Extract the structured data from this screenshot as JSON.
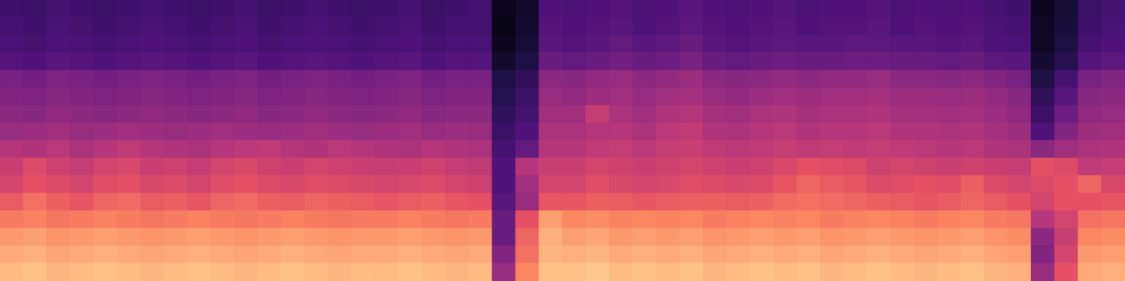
{
  "chart_data": {
    "type": "heatmap",
    "tick_labels": false,
    "xlim": [
      0,
      48
    ],
    "ylim": [
      0,
      16
    ],
    "zlim": [
      -80,
      0
    ],
    "cells": [
      [
        -63,
        -64,
        -62,
        -63,
        -64,
        -63,
        -62,
        -63,
        -64,
        -63,
        -62,
        -64,
        -63,
        -62,
        -63,
        -64,
        -63,
        -62,
        -64,
        -63,
        -62,
        -76,
        -74,
        -60,
        -61,
        -60,
        -59,
        -61,
        -60,
        -58,
        -60,
        -61,
        -60,
        -59,
        -61,
        -60,
        -60,
        -59,
        -61,
        -60,
        -61,
        -60,
        -62,
        -63,
        -76,
        -72,
        -64,
        -62
      ],
      [
        -62,
        -63,
        -61,
        -62,
        -63,
        -62,
        -61,
        -62,
        -63,
        -62,
        -61,
        -63,
        -62,
        -61,
        -62,
        -63,
        -62,
        -61,
        -63,
        -62,
        -62,
        -77,
        -73,
        -59,
        -60,
        -59,
        -58,
        -60,
        -59,
        -57,
        -59,
        -60,
        -59,
        -58,
        -60,
        -59,
        -59,
        -58,
        -60,
        -59,
        -60,
        -59,
        -61,
        -62,
        -75,
        -71,
        -63,
        -61
      ],
      [
        -61,
        -62,
        -60,
        -61,
        -62,
        -61,
        -60,
        -61,
        -62,
        -61,
        -60,
        -62,
        -61,
        -60,
        -61,
        -62,
        -61,
        -60,
        -62,
        -61,
        -61,
        -76,
        -72,
        -58,
        -59,
        -58,
        -56,
        -58,
        -57,
        -55,
        -58,
        -59,
        -58,
        -57,
        -58,
        -58,
        -57,
        -57,
        -58,
        -58,
        -59,
        -58,
        -60,
        -61,
        -75,
        -70,
        -62,
        -60
      ],
      [
        -59,
        -60,
        -58,
        -59,
        -60,
        -59,
        -58,
        -59,
        -60,
        -59,
        -58,
        -60,
        -59,
        -58,
        -59,
        -60,
        -59,
        -58,
        -60,
        -59,
        -59,
        -74,
        -70,
        -55,
        -56,
        -55,
        -53,
        -55,
        -54,
        -52,
        -55,
        -56,
        -55,
        -54,
        -55,
        -55,
        -54,
        -54,
        -55,
        -55,
        -56,
        -55,
        -57,
        -58,
        -73,
        -68,
        -59,
        -57
      ],
      [
        -52,
        -53,
        -51,
        -52,
        -53,
        -52,
        -51,
        -52,
        -53,
        -52,
        -51,
        -53,
        -52,
        -51,
        -52,
        -53,
        -52,
        -51,
        -53,
        -52,
        -52,
        -70,
        -66,
        -48,
        -49,
        -47,
        -46,
        -48,
        -47,
        -45,
        -48,
        -49,
        -48,
        -47,
        -48,
        -47,
        -47,
        -46,
        -48,
        -48,
        -49,
        -48,
        -50,
        -52,
        -70,
        -62,
        -52,
        -50
      ],
      [
        -50,
        -51,
        -49,
        -50,
        -51,
        -50,
        -49,
        -50,
        -51,
        -50,
        -49,
        -51,
        -50,
        -49,
        -50,
        -51,
        -50,
        -49,
        -51,
        -50,
        -50,
        -68,
        -64,
        -46,
        -47,
        -45,
        -44,
        -46,
        -44,
        -43,
        -46,
        -47,
        -45,
        -44,
        -45,
        -44,
        -44,
        -43,
        -45,
        -45,
        -46,
        -45,
        -47,
        -49,
        -66,
        -58,
        -49,
        -48
      ],
      [
        -48,
        -49,
        -47,
        -48,
        -49,
        -48,
        -47,
        -48,
        -49,
        -48,
        -47,
        -49,
        -48,
        -47,
        -48,
        -49,
        -48,
        -47,
        -49,
        -48,
        -48,
        -66,
        -62,
        -44,
        -44,
        -37,
        -42,
        -44,
        -41,
        -40,
        -43,
        -44,
        -42,
        -41,
        -43,
        -42,
        -42,
        -41,
        -43,
        -43,
        -44,
        -43,
        -45,
        -47,
        -64,
        -54,
        -47,
        -46
      ],
      [
        -46,
        -45,
        -44,
        -46,
        -45,
        -44,
        -45,
        -46,
        -45,
        -44,
        -45,
        -46,
        -45,
        -44,
        -45,
        -46,
        -45,
        -44,
        -46,
        -45,
        -46,
        -64,
        -60,
        -42,
        -42,
        -40,
        -40,
        -42,
        -39,
        -38,
        -41,
        -42,
        -40,
        -39,
        -41,
        -40,
        -40,
        -39,
        -41,
        -41,
        -42,
        -41,
        -43,
        -45,
        -60,
        -50,
        -45,
        -44
      ],
      [
        -40,
        -41,
        -39,
        -42,
        -40,
        -38,
        -40,
        -41,
        -42,
        -40,
        -39,
        -38,
        -40,
        -41,
        -39,
        -40,
        -41,
        -42,
        -40,
        -41,
        -42,
        -62,
        -56,
        -40,
        -40,
        -38,
        -37,
        -39,
        -37,
        -36,
        -38,
        -39,
        -38,
        -37,
        -38,
        -37,
        -38,
        -37,
        -38,
        -39,
        -40,
        -39,
        -41,
        -42,
        -48,
        -44,
        -42,
        -41
      ],
      [
        -36,
        -32,
        -35,
        -37,
        -34,
        -33,
        -36,
        -35,
        -37,
        -34,
        -33,
        -35,
        -36,
        -34,
        -35,
        -36,
        -37,
        -36,
        -35,
        -37,
        -38,
        -60,
        -40,
        -36,
        -36,
        -34,
        -35,
        -36,
        -35,
        -34,
        -35,
        -36,
        -35,
        -33,
        -30,
        -31,
        -32,
        -35,
        -34,
        -35,
        -36,
        -35,
        -36,
        -37,
        -30,
        -32,
        -38,
        -37
      ],
      [
        -34,
        -30,
        -32,
        -34,
        -31,
        -30,
        -33,
        -32,
        -34,
        -31,
        -30,
        -32,
        -33,
        -31,
        -32,
        -33,
        -34,
        -33,
        -32,
        -34,
        -35,
        -60,
        -44,
        -34,
        -34,
        -31,
        -33,
        -34,
        -33,
        -31,
        -32,
        -33,
        -32,
        -29,
        -26,
        -28,
        -29,
        -32,
        -31,
        -30,
        -31,
        -27,
        -32,
        -34,
        -32,
        -30,
        -26,
        -33
      ],
      [
        -28,
        -24,
        -27,
        -29,
        -26,
        -25,
        -28,
        -27,
        -29,
        -26,
        -25,
        -27,
        -28,
        -26,
        -27,
        -28,
        -29,
        -28,
        -27,
        -29,
        -30,
        -58,
        -46,
        -29,
        -29,
        -27,
        -28,
        -29,
        -28,
        -27,
        -27,
        -28,
        -27,
        -25,
        -24,
        -25,
        -26,
        -27,
        -28,
        -29,
        -28,
        -26,
        -28,
        -30,
        -34,
        -30,
        -30,
        -29
      ],
      [
        -22,
        -21,
        -23,
        -22,
        -21,
        -22,
        -23,
        -22,
        -21,
        -22,
        -23,
        -22,
        -21,
        -22,
        -23,
        -22,
        -22,
        -21,
        -22,
        -23,
        -22,
        -55,
        -30,
        -16,
        -20,
        -19,
        -21,
        -20,
        -21,
        -20,
        -22,
        -21,
        -20,
        -21,
        -20,
        -22,
        -21,
        -20,
        -21,
        -22,
        -21,
        -20,
        -22,
        -23,
        -40,
        -34,
        -24,
        -23
      ],
      [
        -17,
        -16,
        -18,
        -17,
        -16,
        -17,
        -18,
        -17,
        -16,
        -17,
        -18,
        -17,
        -16,
        -17,
        -18,
        -17,
        -17,
        -16,
        -17,
        -18,
        -17,
        -55,
        -26,
        -13,
        -16,
        -15,
        -17,
        -16,
        -17,
        -16,
        -18,
        -17,
        -16,
        -17,
        -16,
        -18,
        -17,
        -16,
        -17,
        -18,
        -17,
        -16,
        -18,
        -19,
        -48,
        -36,
        -20,
        -19
      ],
      [
        -14,
        -13,
        -15,
        -14,
        -13,
        -14,
        -15,
        -14,
        -13,
        -14,
        -15,
        -14,
        -13,
        -14,
        -15,
        -14,
        -14,
        -13,
        -14,
        -15,
        -14,
        -50,
        -24,
        -12,
        -13,
        -12,
        -14,
        -13,
        -14,
        -13,
        -15,
        -14,
        -13,
        -14,
        -13,
        -15,
        -14,
        -13,
        -14,
        -15,
        -14,
        -13,
        -15,
        -16,
        -50,
        -34,
        -17,
        -16
      ],
      [
        -11,
        -10,
        -12,
        -11,
        -10,
        -11,
        -12,
        -11,
        -10,
        -11,
        -12,
        -11,
        -10,
        -11,
        -12,
        -11,
        -11,
        -10,
        -11,
        -12,
        -11,
        -46,
        -20,
        -10,
        -10,
        -9,
        -11,
        -10,
        -11,
        -10,
        -12,
        -11,
        -10,
        -11,
        -10,
        -12,
        -11,
        -10,
        -11,
        -12,
        -11,
        -10,
        -12,
        -13,
        -46,
        -30,
        -14,
        -13
      ]
    ]
  }
}
